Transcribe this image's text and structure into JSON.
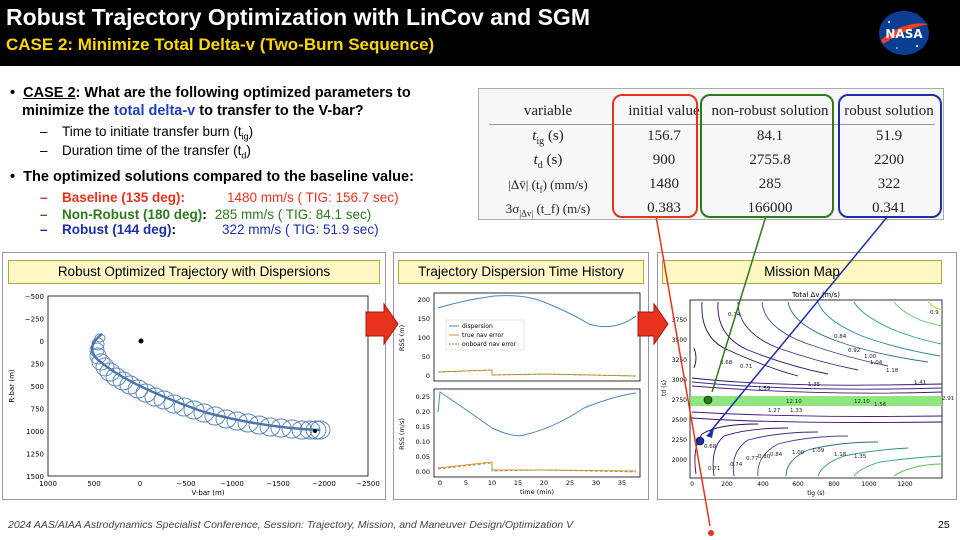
{
  "header": {
    "title": "Robust Trajectory Optimization with LinCov and SGM",
    "subtitle": "CASE 2:  Minimize Total Delta-v (Two-Burn Sequence)"
  },
  "logo": {
    "text": "NASA"
  },
  "bullets": {
    "b1_case": "CASE 2",
    "b1_text_a": ":  What are the following optimized parameters to",
    "b1_text_b": "minimize the ",
    "b1_highlight": "total delta-v",
    "b1_text_c": " to transfer to the V-bar?",
    "sub1": "Time to initiate transfer burn (t",
    "sub1_sub": "ig",
    "sub2": "Duration time of the transfer (t",
    "sub2_sub": "d",
    "b2": "The optimized solutions compared to the baseline value:",
    "res": [
      {
        "label": "Baseline (135 deg):",
        "value": "1480 mm/s ( TIG: 156.7 sec)"
      },
      {
        "label": "Non-Robust (180 deg)",
        "sep": ":",
        "value": "285 mm/s  ( TIG:  84.1 sec)"
      },
      {
        "label": "Robust (144 deg)",
        "sep": ":",
        "value": "322 mm/s  ( TIG:  51.9 sec)"
      }
    ]
  },
  "table": {
    "headers": [
      "variable",
      "initial value",
      "non-robust solution",
      "robust solution"
    ],
    "rows": [
      {
        "var": "t",
        "var_sub": "ig",
        "unit": " (s)",
        "initial": "156.7",
        "nonrobust": "84.1",
        "robust": "51.9"
      },
      {
        "var": "t",
        "var_sub": "d",
        "unit": " (s)",
        "initial": "900",
        "nonrobust": "2755.8",
        "robust": "2200"
      },
      {
        "var": "|Δv̄| (t",
        "var_sub": "f",
        "unit": ") (mm/s)",
        "initial": "1480",
        "nonrobust": "285",
        "robust": "322"
      },
      {
        "var": "3σ",
        "var_sub": "|Δv|",
        "unit": " (t_f) (m/s)",
        "initial": "0.383",
        "nonrobust": "166000",
        "robust": "0.341"
      }
    ]
  },
  "panels": {
    "p1_title": "Robust Optimized Trajectory with Dispersions",
    "p2_title": "Trajectory Dispersion Time History",
    "p3_title": "Mission Map"
  },
  "plot1": {
    "ylabel": "R-bar (m)",
    "xlabel": "V-bar (m)",
    "yticks": [
      "−500",
      "−250",
      "0",
      "250",
      "500",
      "750",
      "1000",
      "1250",
      "1500"
    ],
    "xticks": [
      "1000",
      "500",
      "0",
      "−500",
      "−1000",
      "−1500",
      "−2000",
      "−2500"
    ]
  },
  "plot2": {
    "ylabel_top": "RSS (m)",
    "ylabel_bot": "RSS (m/s)",
    "xlabel": "time (min)",
    "yticks_top": [
      "200",
      "150",
      "100",
      "50",
      "0"
    ],
    "yticks_bot": [
      "0.25",
      "0.20",
      "0.15",
      "0.10",
      "0.05",
      "0.00"
    ],
    "xticks": [
      "0",
      "5",
      "10",
      "15",
      "20",
      "25",
      "30",
      "35"
    ],
    "legend": [
      "dispersion",
      "true nav error",
      "onboard nav error"
    ]
  },
  "plot3": {
    "title": "Total Δv (m/s)",
    "ylabel": "td (s)",
    "xlabel": "tig (s)",
    "yticks": [
      "3750",
      "3500",
      "3250",
      "3000",
      "2750",
      "2500",
      "2250",
      "2000"
    ],
    "xticks": [
      "0",
      "200",
      "400",
      "600",
      "800",
      "1000",
      "1200"
    ],
    "contour_labels": [
      "0.74",
      "0.9",
      "0.84",
      "0.92",
      "1.00",
      "1.04",
      "1.18",
      "1.41",
      "0.68",
      "0.71",
      "1.35",
      "2.91",
      "12.10",
      "12.10",
      "1.27",
      "1.33",
      "1.59",
      "1.56",
      "0.68",
      "0.71",
      "0.74",
      "0.77",
      "0.80",
      "0.84",
      "1.00",
      "1.09",
      "1.18",
      "1.35"
    ]
  },
  "footer": "2024 AAS/AIAA Astrodynamics Specialist Conference, Session: Trajectory, Mission, and Maneuver Design/Optimization V",
  "page_number": "25",
  "colors": {
    "accent_red": "#e8331c",
    "green": "#2c7a1c",
    "navy": "#1c2fa8",
    "yellow": "#ffd700"
  }
}
